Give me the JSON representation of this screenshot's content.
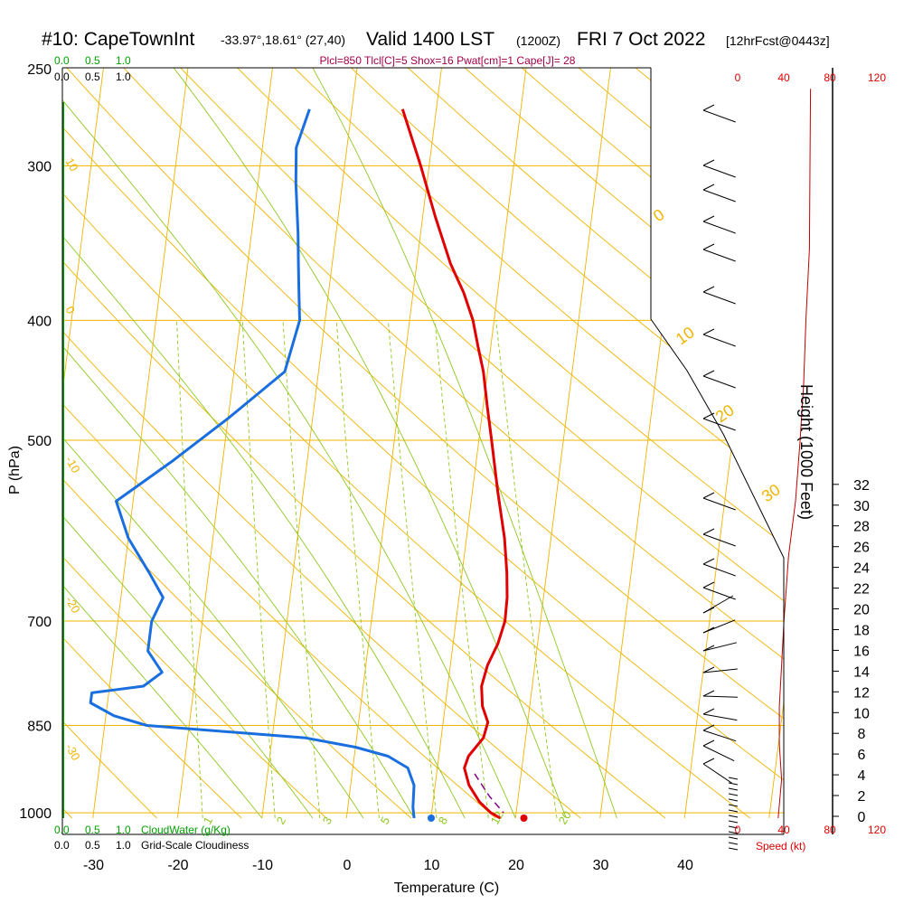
{
  "title": {
    "station": "#10: CapeTownInt",
    "coords": "-33.97°,18.61° (27,40)",
    "valid": "Valid 1400 LST",
    "zulu": "(1200Z)",
    "date": "FRI 7 Oct 2022",
    "forecast": "[12hrFcst@0443z]"
  },
  "indices_line": "Plcl=850 Tlcl[C]=5 Shox=16 Pwat[cm]=1 Cape[J]= 28",
  "colors": {
    "temperature": "#e00000",
    "dewpoint": "#1a6fe0",
    "isobar": "#f0b400",
    "dry_adiabat": "#f0b400",
    "moist_adiabat": "#90c820",
    "mixing_ratio": "#90c820",
    "parcel": "#800080",
    "cloud_water": "#00a000",
    "wind_speed": "#c00000",
    "indices": "#a0004a",
    "axis": "#000000"
  },
  "cloud_scale": {
    "top_green": [
      "0.0",
      "0.5",
      "1.0"
    ],
    "top_black": [
      "0.0",
      "0.5",
      "1.0"
    ],
    "bottom_green": [
      "0.0",
      "0.5",
      "1.0"
    ],
    "bottom_black": [
      "0.0",
      "0.5",
      "1.0"
    ],
    "cloudwater_label": "CloudWater (g/Kg)",
    "cloudiness_label": "Grid-Scale Cloudiness"
  },
  "speed_axis": {
    "ticks_top": [
      "0",
      "40",
      "80",
      "120"
    ],
    "ticks_bottom": [
      "0",
      "40",
      "80",
      "120"
    ],
    "label": "Speed (kt)"
  },
  "height_axis": {
    "label": "Height (1000 Feet)",
    "ticks": [
      "0",
      "2",
      "4",
      "6",
      "8",
      "10",
      "12",
      "14",
      "16",
      "18",
      "20",
      "22",
      "24",
      "26",
      "28",
      "30",
      "32"
    ]
  },
  "chart_data": {
    "type": "line",
    "xlabel": "Temperature (C)",
    "ylabel": "P (hPa)",
    "x_ticks": [
      "-30",
      "-20",
      "-10",
      "0",
      "10",
      "20",
      "30",
      "40"
    ],
    "y_ticks": [
      "250",
      "300",
      "400",
      "500",
      "700",
      "850",
      "1000"
    ],
    "xlim": [
      -34,
      45
    ],
    "ylim": [
      1010,
      250
    ],
    "y_scale": "log",
    "skew_per_decade": 173.5,
    "series": [
      {
        "role": "temperature",
        "points": [
          [
            -4,
            270
          ],
          [
            -1,
            300
          ],
          [
            1.5,
            330
          ],
          [
            4,
            360
          ],
          [
            6,
            380
          ],
          [
            7.5,
            400
          ],
          [
            8.5,
            420
          ],
          [
            9.5,
            440
          ],
          [
            10.5,
            470
          ],
          [
            11.5,
            500
          ],
          [
            13,
            550
          ],
          [
            14.5,
            600
          ],
          [
            15.3,
            640
          ],
          [
            15.7,
            670
          ],
          [
            15.8,
            700
          ],
          [
            15.3,
            730
          ],
          [
            14.4,
            760
          ],
          [
            14,
            790
          ],
          [
            14.4,
            820
          ],
          [
            15.3,
            845
          ],
          [
            15,
            870
          ],
          [
            13.5,
            900
          ],
          [
            13.2,
            920
          ],
          [
            14,
            950
          ],
          [
            15.5,
            980
          ],
          [
            17,
            1000
          ],
          [
            18.2,
            1010
          ]
        ]
      },
      {
        "role": "dewpoint",
        "points": [
          [
            -15,
            270
          ],
          [
            -16,
            290
          ],
          [
            -15.5,
            310
          ],
          [
            -14.5,
            340
          ],
          [
            -14,
            360
          ],
          [
            -13.5,
            380
          ],
          [
            -13,
            400
          ],
          [
            -14,
            440
          ],
          [
            -20,
            480
          ],
          [
            -26,
            520
          ],
          [
            -32,
            560
          ],
          [
            -30,
            600
          ],
          [
            -27,
            640
          ],
          [
            -25,
            670
          ],
          [
            -26,
            700
          ],
          [
            -26,
            740
          ],
          [
            -24,
            770
          ],
          [
            -26,
            790
          ],
          [
            -32,
            800
          ],
          [
            -32,
            815
          ],
          [
            -29,
            835
          ],
          [
            -25,
            850
          ],
          [
            -6,
            870
          ],
          [
            0,
            885
          ],
          [
            4,
            900
          ],
          [
            6.5,
            920
          ],
          [
            7.5,
            950
          ],
          [
            7.7,
            990
          ],
          [
            8,
            1010
          ]
        ]
      },
      {
        "role": "parcel",
        "points": [
          [
            14.5,
            930
          ],
          [
            16.6,
            970
          ],
          [
            18.5,
            1000
          ]
        ]
      },
      {
        "role": "wind_speed",
        "points": [
          [
            63,
            260
          ],
          [
            62.5,
            300
          ],
          [
            62,
            350
          ],
          [
            59,
            400
          ],
          [
            57,
            450
          ],
          [
            54,
            500
          ],
          [
            50,
            560
          ],
          [
            44,
            620
          ],
          [
            40,
            700
          ],
          [
            38,
            760
          ],
          [
            36,
            820
          ],
          [
            36,
            880
          ],
          [
            38,
            940
          ],
          [
            35,
            1010
          ]
        ]
      }
    ],
    "surface_markers": {
      "temperature": 22.3,
      "dewpoint": 10.8
    },
    "mixing_ratio_labels": [
      "1",
      "2",
      "3",
      "5",
      "8",
      "12",
      "20"
    ],
    "adiabat_labels": [
      "10",
      "0",
      "-10",
      "-20",
      "-30",
      "0",
      "10",
      "20",
      "30"
    ]
  }
}
